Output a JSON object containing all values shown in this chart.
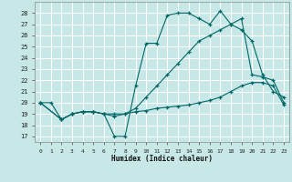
{
  "xlabel": "Humidex (Indice chaleur)",
  "bg_color": "#c8e8e8",
  "grid_color": "#ffffff",
  "line_color": "#006666",
  "xlim": [
    -0.5,
    23.5
  ],
  "ylim": [
    16.5,
    29.0
  ],
  "yticks": [
    17,
    18,
    19,
    20,
    21,
    22,
    23,
    24,
    25,
    26,
    27,
    28
  ],
  "xticks": [
    0,
    1,
    2,
    3,
    4,
    5,
    6,
    7,
    8,
    9,
    10,
    11,
    12,
    13,
    14,
    15,
    16,
    17,
    18,
    19,
    20,
    21,
    22,
    23
  ],
  "line1_x": [
    0,
    1,
    2,
    3,
    4,
    5,
    6,
    7,
    8,
    9,
    10,
    11,
    12,
    13,
    14,
    15,
    16,
    17,
    18,
    19,
    20,
    21,
    22,
    23
  ],
  "line1_y": [
    20,
    20,
    18.5,
    19,
    19.2,
    19.2,
    19,
    17,
    17,
    21.5,
    25.3,
    25.3,
    27.8,
    28.0,
    28.0,
    27.5,
    27.0,
    28.2,
    27.0,
    26.5,
    25.5,
    22.5,
    21.0,
    20.5
  ],
  "line2_x": [
    0,
    2,
    3,
    4,
    5,
    6,
    7,
    8,
    9,
    10,
    11,
    12,
    13,
    14,
    15,
    16,
    17,
    18,
    19,
    20,
    21,
    22,
    23
  ],
  "line2_y": [
    20,
    18.5,
    19,
    19.2,
    19.2,
    19,
    19,
    19,
    19.5,
    20.5,
    21.5,
    22.5,
    23.5,
    24.5,
    25.5,
    26.0,
    26.5,
    27.0,
    27.5,
    22.5,
    22.3,
    22.0,
    20.0
  ],
  "line3_x": [
    0,
    2,
    3,
    4,
    5,
    6,
    7,
    8,
    9,
    10,
    11,
    12,
    13,
    14,
    15,
    16,
    17,
    18,
    19,
    20,
    21,
    22,
    23
  ],
  "line3_y": [
    20,
    18.5,
    19,
    19.2,
    19.2,
    19,
    18.8,
    19,
    19.2,
    19.3,
    19.5,
    19.6,
    19.7,
    19.8,
    20.0,
    20.2,
    20.5,
    21.0,
    21.5,
    21.8,
    21.8,
    21.5,
    19.8
  ]
}
